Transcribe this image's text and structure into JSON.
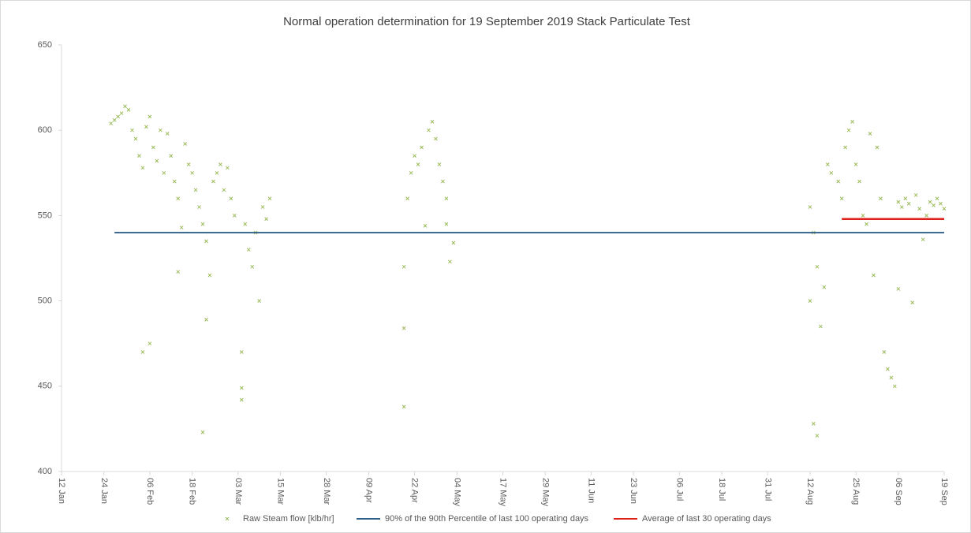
{
  "chart_data": {
    "type": "scatter",
    "title": "Normal operation determination for 19 September 2019 Stack Particulate Test",
    "xlim": [
      "12 Jan",
      "19 Sep"
    ],
    "xticks": [
      "12 Jan",
      "24 Jan",
      "06 Feb",
      "18 Feb",
      "03 Mar",
      "15 Mar",
      "28 Mar",
      "09 Apr",
      "22 Apr",
      "04 May",
      "17 May",
      "29 May",
      "11 Jun",
      "23 Jun",
      "06 Jul",
      "18 Jul",
      "31 Jul",
      "12 Aug",
      "25 Aug",
      "06 Sep",
      "19 Sep"
    ],
    "ylim": [
      400,
      650
    ],
    "yticks": [
      400,
      450,
      500,
      550,
      600,
      650
    ],
    "series": [
      {
        "name": "Raw Steam flow [klb/hr]",
        "color": "#9bbb59",
        "mode": "markers",
        "x": [
          "26 Jan",
          "27 Jan",
          "28 Jan",
          "29 Jan",
          "30 Jan",
          "31 Jan",
          "01 Feb",
          "02 Feb",
          "03 Feb",
          "04 Feb",
          "04 Feb",
          "05 Feb",
          "06 Feb",
          "06 Feb",
          "07 Feb",
          "08 Feb",
          "09 Feb",
          "10 Feb",
          "11 Feb",
          "12 Feb",
          "13 Feb",
          "14 Feb",
          "14 Feb",
          "15 Feb",
          "16 Feb",
          "17 Feb",
          "18 Feb",
          "19 Feb",
          "20 Feb",
          "21 Feb",
          "21 Feb",
          "22 Feb",
          "22 Feb",
          "23 Feb",
          "24 Feb",
          "25 Feb",
          "26 Feb",
          "27 Feb",
          "28 Feb",
          "01 Mar",
          "02 Mar",
          "04 Mar",
          "04 Mar",
          "04 Mar",
          "05 Mar",
          "06 Mar",
          "07 Mar",
          "08 Mar",
          "09 Mar",
          "10 Mar",
          "11 Mar",
          "12 Mar",
          "19 Apr",
          "19 Apr",
          "19 Apr",
          "20 Apr",
          "21 Apr",
          "22 Apr",
          "23 Apr",
          "24 Apr",
          "25 Apr",
          "26 Apr",
          "27 Apr",
          "28 Apr",
          "29 Apr",
          "30 Apr",
          "01 May",
          "01 May",
          "02 May",
          "03 May",
          "12 Aug",
          "12 Aug",
          "13 Aug",
          "13 Aug",
          "14 Aug",
          "14 Aug",
          "15 Aug",
          "16 Aug",
          "17 Aug",
          "18 Aug",
          "20 Aug",
          "21 Aug",
          "22 Aug",
          "23 Aug",
          "24 Aug",
          "25 Aug",
          "26 Aug",
          "27 Aug",
          "28 Aug",
          "29 Aug",
          "30 Aug",
          "31 Aug",
          "01 Sep",
          "02 Sep",
          "03 Sep",
          "04 Sep",
          "05 Sep",
          "06 Sep",
          "06 Sep",
          "07 Sep",
          "08 Sep",
          "09 Sep",
          "10 Sep",
          "11 Sep",
          "12 Sep",
          "13 Sep",
          "14 Sep",
          "15 Sep",
          "16 Sep",
          "17 Sep",
          "18 Sep",
          "19 Sep"
        ],
        "values": [
          604,
          606,
          608,
          610,
          614,
          612,
          600,
          595,
          585,
          470,
          578,
          602,
          608,
          475,
          590,
          582,
          600,
          575,
          598,
          585,
          570,
          517,
          560,
          543,
          592,
          580,
          575,
          565,
          555,
          423,
          545,
          489,
          535,
          515,
          570,
          575,
          580,
          565,
          578,
          560,
          550,
          470,
          449,
          442,
          545,
          530,
          520,
          540,
          500,
          555,
          548,
          560,
          438,
          484,
          520,
          560,
          575,
          585,
          580,
          590,
          544,
          600,
          605,
          595,
          580,
          570,
          560,
          545,
          523,
          534,
          555,
          500,
          540,
          428,
          520,
          421,
          485,
          508,
          580,
          575,
          570,
          560,
          590,
          600,
          605,
          580,
          570,
          550,
          545,
          598,
          515,
          590,
          560,
          470,
          460,
          455,
          450,
          507,
          558,
          555,
          560,
          557,
          499,
          562,
          554,
          536,
          550,
          558,
          556,
          560,
          557,
          554
        ]
      },
      {
        "name": "90% of the 90th Percentile of last 100 operating days",
        "color": "#2e5f8a",
        "mode": "line",
        "x": [
          "27 Jan",
          "19 Sep"
        ],
        "values": [
          540,
          540
        ]
      },
      {
        "name": "Average of last 30 operating days",
        "color": "#e0201b",
        "mode": "line",
        "x": [
          "21 Aug",
          "19 Sep"
        ],
        "values": [
          548,
          548
        ]
      }
    ]
  }
}
